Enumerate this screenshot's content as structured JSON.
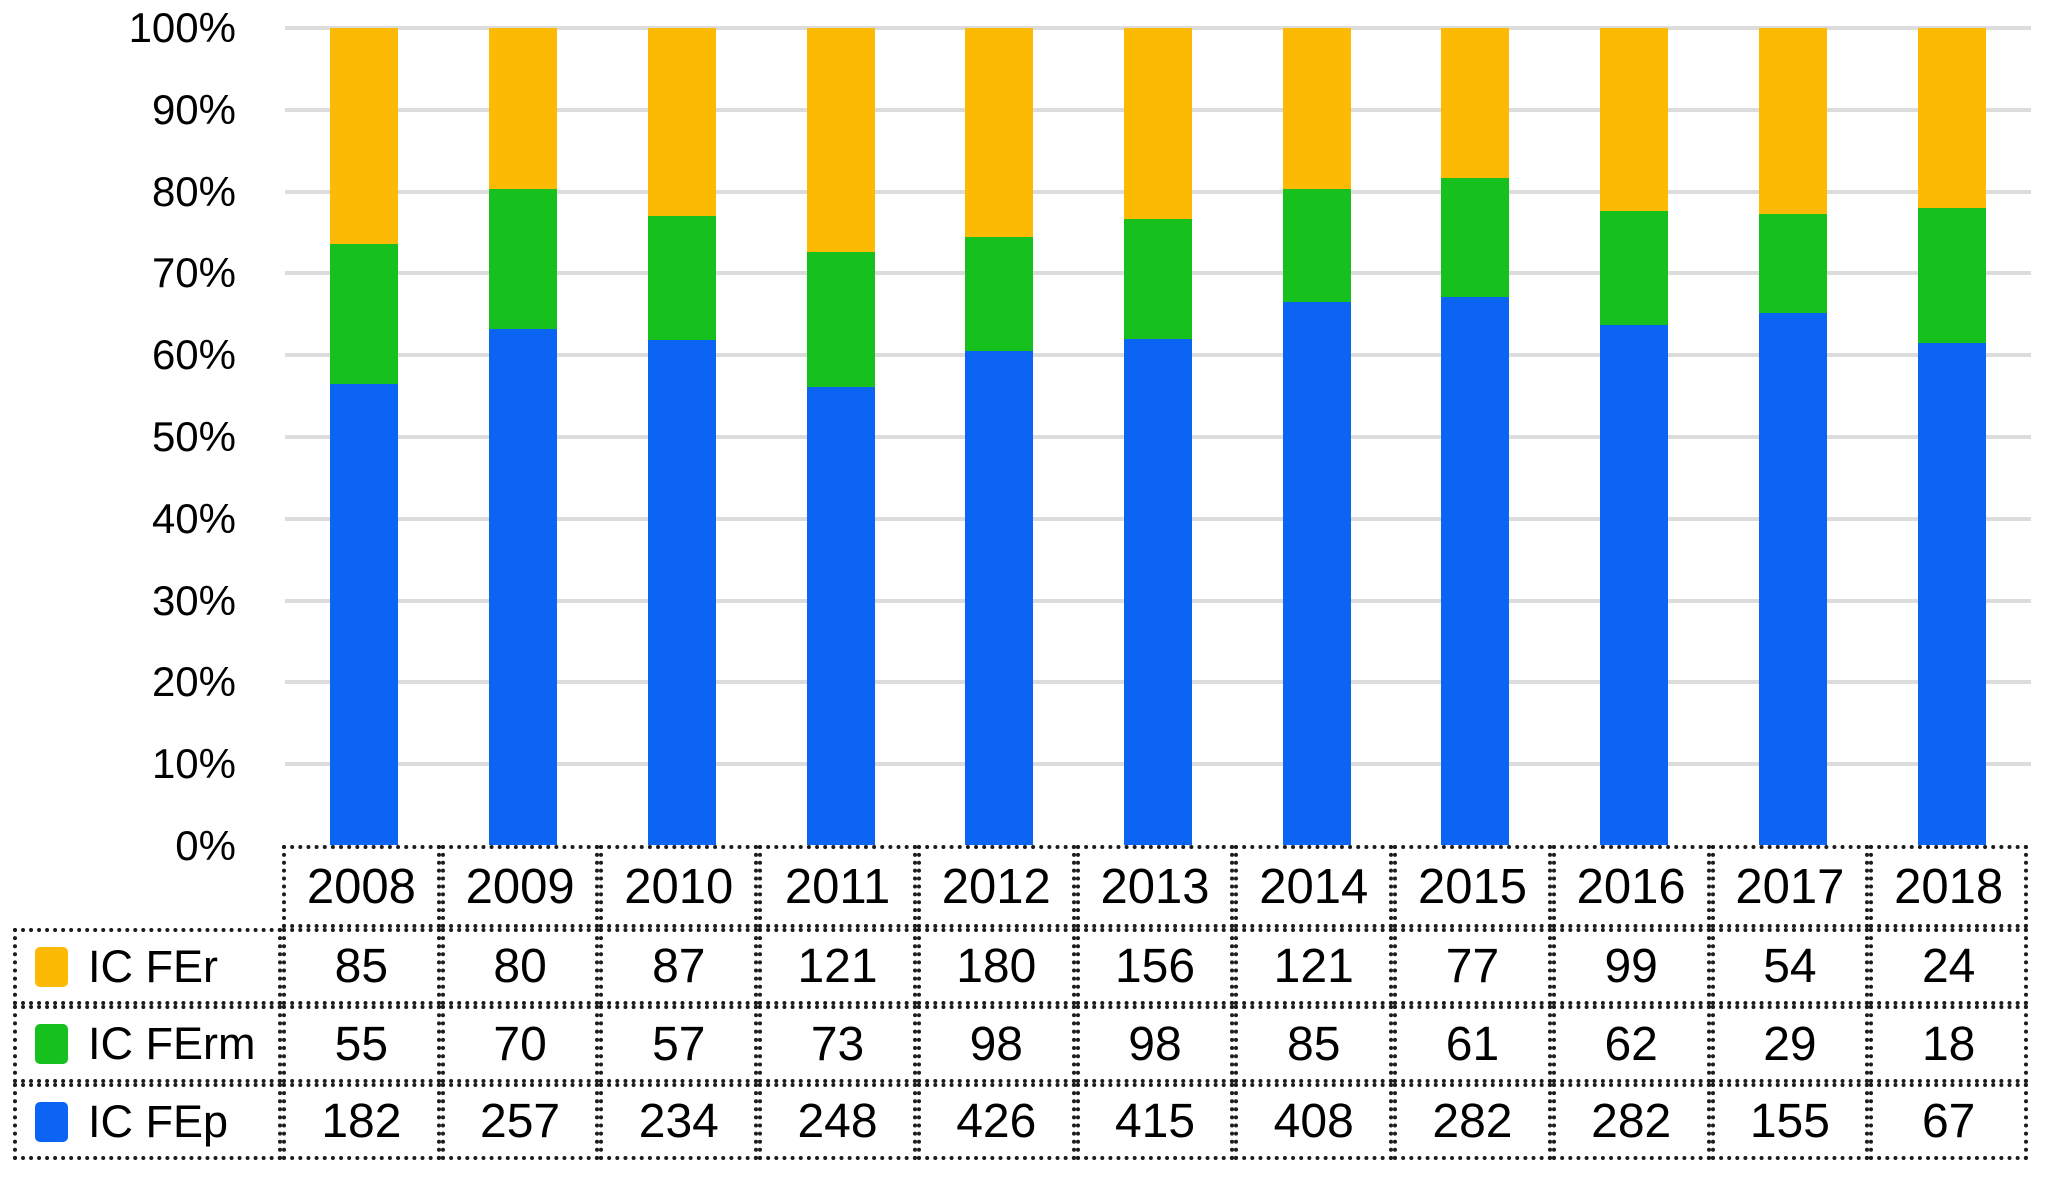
{
  "chart_data": {
    "type": "bar",
    "variant": "100%-stacked-column",
    "title": "",
    "xlabel": "",
    "ylabel": "",
    "grid": true,
    "gridline_color": "#dcdcdc",
    "axis_range_percent": [
      0,
      100
    ],
    "y_ticks": [
      "100%",
      "90%",
      "80%",
      "70%",
      "60%",
      "50%",
      "40%",
      "30%",
      "20%",
      "10%",
      "0%"
    ],
    "categories": [
      "2008",
      "2009",
      "2010",
      "2011",
      "2012",
      "2013",
      "2014",
      "2015",
      "2016",
      "2017",
      "2018"
    ],
    "series": [
      {
        "name": "IC FEr",
        "color": "#FCBA05",
        "values": [
          85,
          80,
          87,
          121,
          180,
          156,
          121,
          77,
          99,
          54,
          24
        ]
      },
      {
        "name": "IC FErm",
        "color": "#16C01D",
        "values": [
          55,
          70,
          57,
          73,
          98,
          98,
          85,
          61,
          62,
          29,
          18
        ]
      },
      {
        "name": "IC FEp",
        "color": "#0C64F4",
        "values": [
          182,
          257,
          234,
          248,
          426,
          415,
          408,
          282,
          282,
          155,
          67
        ]
      }
    ],
    "legend_position": "table-left",
    "table_border_style": "dotted-black"
  }
}
